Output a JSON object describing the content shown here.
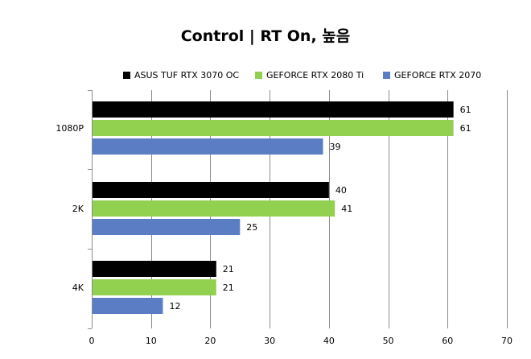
{
  "chart_data": {
    "type": "bar",
    "orientation": "horizontal",
    "title": "Control | RT On, 높음",
    "categories": [
      "1080P",
      "2K",
      "4K"
    ],
    "series": [
      {
        "name": "ASUS TUF RTX 3070 OC",
        "color": "#000000",
        "values": [
          61,
          40,
          21
        ]
      },
      {
        "name": "GEFORCE RTX 2080 Ti",
        "color": "#92D050",
        "values": [
          61,
          41,
          21
        ]
      },
      {
        "name": "GEFORCE RTX 2070",
        "color": "#5B7DC3",
        "values": [
          39,
          25,
          12
        ]
      }
    ],
    "xlim": [
      0,
      70
    ],
    "xticks": [
      0,
      10,
      20,
      30,
      40,
      50,
      60,
      70
    ],
    "grid": true,
    "legend_position": "top"
  }
}
